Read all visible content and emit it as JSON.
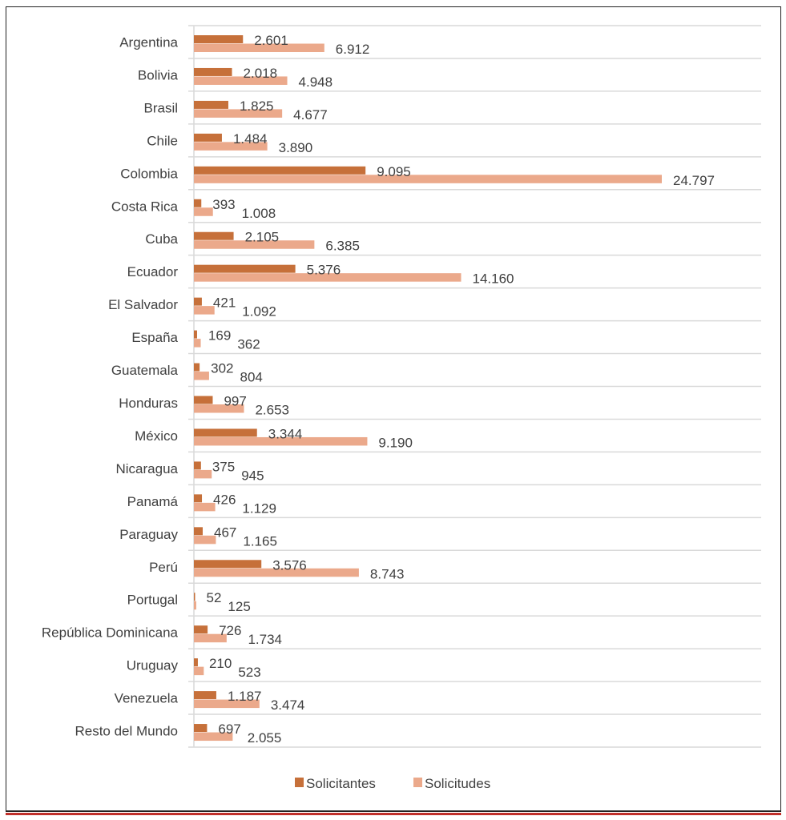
{
  "chart_data": {
    "type": "bar",
    "orientation": "horizontal",
    "title": "",
    "xlabel": "",
    "ylabel": "",
    "categories": [
      "Argentina",
      "Bolivia",
      "Brasil",
      "Chile",
      "Colombia",
      "Costa Rica",
      "Cuba",
      "Ecuador",
      "El Salvador",
      "España",
      "Guatemala",
      "Honduras",
      "México",
      "Nicaragua",
      "Panamá",
      "Paraguay",
      "Perú",
      "Portugal",
      "República Dominicana",
      "Uruguay",
      "Venezuela",
      "Resto del Mundo"
    ],
    "series": [
      {
        "name": "Solicitantes",
        "color": "#C6703A",
        "values": [
          2601,
          2018,
          1825,
          1484,
          9095,
          393,
          2105,
          5376,
          421,
          169,
          302,
          997,
          3344,
          375,
          426,
          467,
          3576,
          52,
          726,
          210,
          1187,
          697
        ]
      },
      {
        "name": "Solicitudes",
        "color": "#EBA98B",
        "values": [
          6912,
          4948,
          4677,
          3890,
          24797,
          1008,
          6385,
          14160,
          1092,
          362,
          804,
          2653,
          9190,
          945,
          1129,
          1165,
          8743,
          125,
          1734,
          523,
          3474,
          2055
        ]
      }
    ],
    "xlim": [
      0,
      30000
    ],
    "grid": "horizontal category separators",
    "legend": "bottom",
    "data_labels": true,
    "number_format": "thousands separator '.'"
  }
}
